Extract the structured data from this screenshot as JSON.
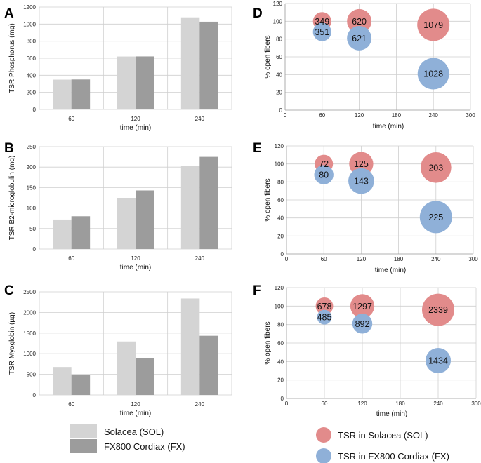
{
  "colors": {
    "sol_bar": "#d4d4d4",
    "fx_bar": "#9c9c9c",
    "sol_bubble": "#e28b8b",
    "fx_bubble": "#8fb0d8",
    "grid": "#cfcfcf"
  },
  "bar_legend": {
    "sol": "Solacea (SOL)",
    "fx": "FX800 Cordiax (FX)"
  },
  "bubble_legend": {
    "sol": "TSR in Solacea (SOL)",
    "fx": "TSR in FX800 Cordiax (FX)"
  },
  "chart_data": [
    {
      "panel": "A",
      "type": "bar",
      "categories": [
        "60",
        "120",
        "240"
      ],
      "series": [
        {
          "name": "Solacea (SOL)",
          "values": [
            349,
            620,
            1079
          ]
        },
        {
          "name": "FX800 Cordiax (FX)",
          "values": [
            351,
            621,
            1028
          ]
        }
      ],
      "xlabel": "time (min)",
      "ylabel": "TSR Phosphorus (mg)",
      "ylim": [
        0,
        1200
      ],
      "yticks": [
        "0",
        "200",
        "400",
        "600",
        "800",
        "1000",
        "1200"
      ]
    },
    {
      "panel": "B",
      "type": "bar",
      "categories": [
        "60",
        "120",
        "240"
      ],
      "series": [
        {
          "name": "Solacea (SOL)",
          "values": [
            72,
            125,
            203
          ]
        },
        {
          "name": "FX800 Cordiax (FX)",
          "values": [
            80,
            143,
            225
          ]
        }
      ],
      "xlabel": "time (min)",
      "ylabel": "TSR B2-microglobulin (mg)",
      "ylim": [
        0,
        250
      ],
      "yticks": [
        "0",
        "50",
        "100",
        "150",
        "200",
        "250"
      ]
    },
    {
      "panel": "C",
      "type": "bar",
      "categories": [
        "60",
        "120",
        "240"
      ],
      "series": [
        {
          "name": "Solacea (SOL)",
          "values": [
            678,
            1297,
            2339
          ]
        },
        {
          "name": "FX800 Cordiax (FX)",
          "values": [
            485,
            892,
            1434
          ]
        }
      ],
      "xlabel": "time (min)",
      "ylabel": "TSR Myoglobin (µg)",
      "ylim": [
        0,
        2500
      ],
      "yticks": [
        "0",
        "500",
        "1000",
        "1500",
        "2000",
        "2500"
      ]
    },
    {
      "panel": "D",
      "type": "scatter",
      "xlabel": "time (min)",
      "ylabel": "% open fibers",
      "xlim": [
        0,
        300
      ],
      "ylim": [
        0,
        120
      ],
      "xticks": [
        "0",
        "60",
        "120",
        "180",
        "240",
        "300"
      ],
      "yticks": [
        "0",
        "20",
        "40",
        "60",
        "80",
        "100",
        "120"
      ],
      "series": [
        {
          "name": "TSR in Solacea (SOL)",
          "x": [
            60,
            120,
            240
          ],
          "y": [
            100,
            100,
            96
          ],
          "size": [
            349,
            620,
            1079
          ]
        },
        {
          "name": "TSR in FX800 Cordiax (FX)",
          "x": [
            60,
            120,
            240
          ],
          "y": [
            88,
            81,
            41
          ],
          "size": [
            351,
            621,
            1028
          ]
        }
      ]
    },
    {
      "panel": "E",
      "type": "scatter",
      "xlabel": "time (min)",
      "ylabel": "% open fibers",
      "xlim": [
        0,
        300
      ],
      "ylim": [
        0,
        120
      ],
      "xticks": [
        "0",
        "60",
        "120",
        "180",
        "240",
        "300"
      ],
      "yticks": [
        "0",
        "20",
        "40",
        "60",
        "80",
        "100",
        "120"
      ],
      "series": [
        {
          "name": "TSR in Solacea (SOL)",
          "x": [
            60,
            120,
            240
          ],
          "y": [
            100,
            100,
            96
          ],
          "size": [
            72,
            125,
            203
          ]
        },
        {
          "name": "TSR in FX800 Cordiax (FX)",
          "x": [
            60,
            120,
            240
          ],
          "y": [
            88,
            81,
            41
          ],
          "size": [
            80,
            143,
            225
          ]
        }
      ]
    },
    {
      "panel": "F",
      "type": "scatter",
      "xlabel": "time (min)",
      "ylabel": "% open fibers",
      "xlim": [
        0,
        300
      ],
      "ylim": [
        0,
        120
      ],
      "xticks": [
        "0",
        "60",
        "120",
        "180",
        "240",
        "300"
      ],
      "yticks": [
        "0",
        "20",
        "40",
        "60",
        "80",
        "100",
        "120"
      ],
      "series": [
        {
          "name": "TSR in Solacea (SOL)",
          "x": [
            60,
            120,
            240
          ],
          "y": [
            100,
            100,
            96
          ],
          "size": [
            678,
            1297,
            2339
          ]
        },
        {
          "name": "TSR in FX800 Cordiax (FX)",
          "x": [
            60,
            120,
            240
          ],
          "y": [
            88,
            81,
            41
          ],
          "size": [
            485,
            892,
            1434
          ]
        }
      ]
    }
  ]
}
